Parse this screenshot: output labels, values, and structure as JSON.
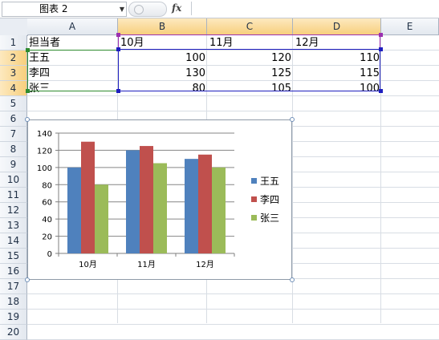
{
  "formula_bar": {
    "name_box": "图表 2",
    "fx_label": "fx",
    "formula": ""
  },
  "columns": [
    "A",
    "B",
    "C",
    "D",
    "E"
  ],
  "rows": [
    "1",
    "2",
    "3",
    "4",
    "5",
    "6",
    "7",
    "8",
    "9",
    "10",
    "11",
    "12",
    "13",
    "14",
    "15",
    "16",
    "17",
    "18",
    "19",
    "20"
  ],
  "cells": {
    "header": [
      "担当者",
      "10月",
      "11月",
      "12月"
    ],
    "data": [
      [
        "王五",
        "100",
        "120",
        "110"
      ],
      [
        "李四",
        "130",
        "125",
        "115"
      ],
      [
        "张三",
        "80",
        "105",
        "100"
      ]
    ]
  },
  "colors": {
    "王五": "#4f81bd",
    "李四": "#c0504d",
    "张三": "#9bbb59",
    "range_green": "#2e8b2e",
    "range_purple": "#9b30b0",
    "range_blue": "#1f1fbf"
  },
  "chart_data": {
    "type": "bar",
    "categories": [
      "10月",
      "11月",
      "12月"
    ],
    "series": [
      {
        "name": "王五",
        "values": [
          100,
          120,
          110
        ]
      },
      {
        "name": "李四",
        "values": [
          130,
          125,
          115
        ]
      },
      {
        "name": "张三",
        "values": [
          80,
          105,
          100
        ]
      }
    ],
    "ylim": [
      0,
      140
    ],
    "yticks": [
      "0",
      "20",
      "40",
      "60",
      "80",
      "100",
      "120",
      "140"
    ],
    "grid": true,
    "legend": "right",
    "title": "",
    "xlabel": "",
    "ylabel": ""
  }
}
